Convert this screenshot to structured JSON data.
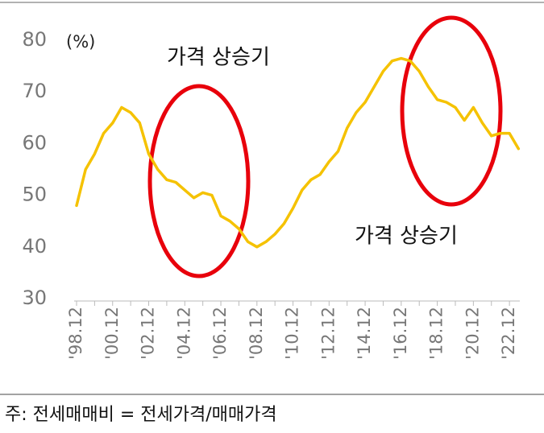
{
  "chart_data": {
    "type": "line",
    "y_unit_label": "(%)",
    "annotations": [
      "가격 상승기",
      "가격 상승기"
    ],
    "footnote": "주:  전세매매비  =  전세가격/매매가격",
    "categories": [
      "'98.12",
      null,
      null,
      null,
      "'00.12",
      null,
      null,
      null,
      "'02.12",
      null,
      null,
      null,
      "'04.12",
      null,
      null,
      null,
      "'06.12",
      null,
      null,
      null,
      "'08.12",
      null,
      null,
      null,
      "'10.12",
      null,
      null,
      null,
      "'12.12",
      null,
      null,
      null,
      "'14.12",
      null,
      null,
      null,
      "'16.12",
      null,
      null,
      null,
      "'18.12",
      null,
      null,
      null,
      "'20.12",
      null,
      null,
      null,
      "'22.12",
      null
    ],
    "series": [
      {
        "color": "#f5c200",
        "values": [
          48,
          55,
          58,
          62,
          64,
          67,
          66,
          64,
          58,
          55,
          53,
          52.5,
          51,
          49.5,
          50.5,
          50,
          46,
          45,
          43.5,
          41,
          40,
          41,
          42.5,
          44.5,
          47.5,
          51,
          53,
          54,
          56.5,
          58.5,
          63,
          66,
          68,
          71,
          74,
          76,
          76.5,
          76,
          74,
          71,
          68.5,
          68,
          67,
          64.5,
          67,
          64,
          61.5,
          62,
          62,
          59
        ]
      }
    ],
    "ylim": [
      30,
      80
    ],
    "yticks": [
      30,
      40,
      50,
      60,
      70,
      80
    ],
    "grid": false
  }
}
